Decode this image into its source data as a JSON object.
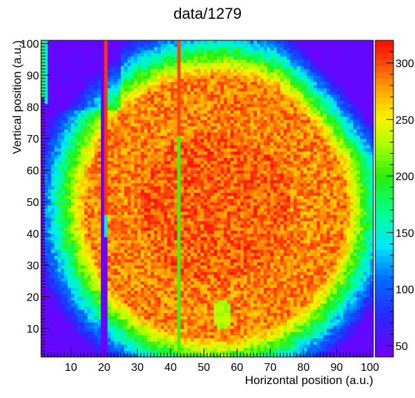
{
  "chart_data": {
    "type": "heatmap",
    "title": "data/1279",
    "xlabel": "Horizontal position (a.u.)",
    "ylabel": "Vertical position (a.u.)",
    "xlim": [
      1,
      100
    ],
    "ylim": [
      1,
      100
    ],
    "x_ticks": [
      10,
      20,
      30,
      40,
      50,
      60,
      70,
      80,
      90,
      100
    ],
    "y_ticks": [
      10,
      20,
      30,
      40,
      50,
      60,
      70,
      80,
      90,
      100
    ],
    "color_scale": {
      "min": 40,
      "max": 320,
      "ticks": [
        50,
        100,
        150,
        200,
        250,
        300
      ],
      "tick_labels": [
        "50",
        "100",
        "150",
        "200",
        "250",
        "300"
      ]
    },
    "bins": {
      "nx": 100,
      "ny": 100
    },
    "features": {
      "background_level": 45,
      "plateau_level": 285,
      "dead_column_x": 19,
      "hot_column_x": 20,
      "hot_column_x2": 42,
      "faint_column_x": 1,
      "yellow_spot": {
        "x": 55,
        "y": 14,
        "value": 230
      }
    }
  }
}
